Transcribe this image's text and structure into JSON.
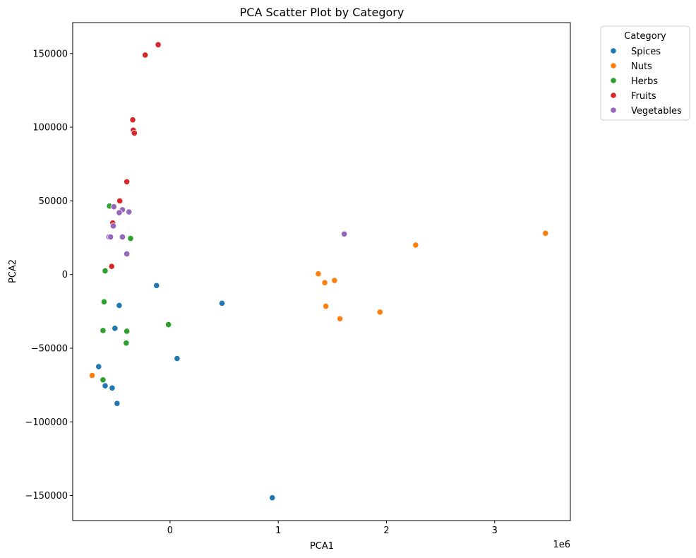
{
  "chart_data": {
    "type": "scatter",
    "title": "PCA Scatter Plot by Category",
    "xlabel": "PCA1",
    "ylabel": "PCA2",
    "x_offset_label": "1e6",
    "x_scale": 1000000,
    "xlim": [
      -900000,
      3700000
    ],
    "ylim": [
      -167000,
      171000
    ],
    "x_ticks": [
      0,
      1000000,
      2000000,
      3000000
    ],
    "x_tick_labels": [
      "0",
      "1",
      "2",
      "3"
    ],
    "y_ticks": [
      -150000,
      -100000,
      -50000,
      0,
      50000,
      100000,
      150000
    ],
    "y_tick_labels": [
      "−150000",
      "−100000",
      "−50000",
      "0",
      "50000",
      "100000",
      "150000"
    ],
    "grid": false,
    "legend": {
      "title": "Category",
      "placement": "outside-top-right"
    },
    "series": [
      {
        "name": "Spices",
        "color": "#1f77b4",
        "points": [
          [
            -125000,
            -7500
          ],
          [
            480000,
            -19500
          ],
          [
            -470000,
            -21000
          ],
          [
            -510000,
            -36500
          ],
          [
            65000,
            -57000
          ],
          [
            -660000,
            -62500
          ],
          [
            -600000,
            -75500
          ],
          [
            -535000,
            -77000
          ],
          [
            -490000,
            -87500
          ],
          [
            945000,
            -151500
          ]
        ]
      },
      {
        "name": "Nuts",
        "color": "#ff7f0e",
        "points": [
          [
            3470000,
            28000
          ],
          [
            2270000,
            20000
          ],
          [
            1370000,
            500
          ],
          [
            1430000,
            -5500
          ],
          [
            1520000,
            -4000
          ],
          [
            1440000,
            -21500
          ],
          [
            1570000,
            -30000
          ],
          [
            1940000,
            -25500
          ],
          [
            -720000,
            -68500
          ]
        ]
      },
      {
        "name": "Herbs",
        "color": "#2ca02c",
        "points": [
          [
            -560000,
            46500
          ],
          [
            -365000,
            24500
          ],
          [
            -600000,
            2500
          ],
          [
            -610000,
            -18500
          ],
          [
            -620000,
            -38000
          ],
          [
            -400000,
            -38500
          ],
          [
            -15000,
            -34000
          ],
          [
            -405000,
            -46500
          ],
          [
            -620000,
            -71500
          ]
        ]
      },
      {
        "name": "Fruits",
        "color": "#d62728",
        "points": [
          [
            -110000,
            156000
          ],
          [
            -230000,
            149000
          ],
          [
            -345000,
            105000
          ],
          [
            -340000,
            98000
          ],
          [
            -330000,
            96000
          ],
          [
            -400000,
            63000
          ],
          [
            -465000,
            50000
          ],
          [
            -530000,
            35000
          ],
          [
            -540000,
            5500
          ]
        ]
      },
      {
        "name": "Vegetables",
        "color": "#9467bd",
        "points": [
          [
            -520000,
            46000
          ],
          [
            -440000,
            44000
          ],
          [
            -470000,
            42000
          ],
          [
            -380000,
            42500
          ],
          [
            -525000,
            33000
          ],
          [
            -565000,
            25500
          ],
          [
            -550000,
            25500
          ],
          [
            -440000,
            25500
          ],
          [
            -400000,
            14000
          ],
          [
            1610000,
            27500
          ]
        ]
      }
    ]
  }
}
